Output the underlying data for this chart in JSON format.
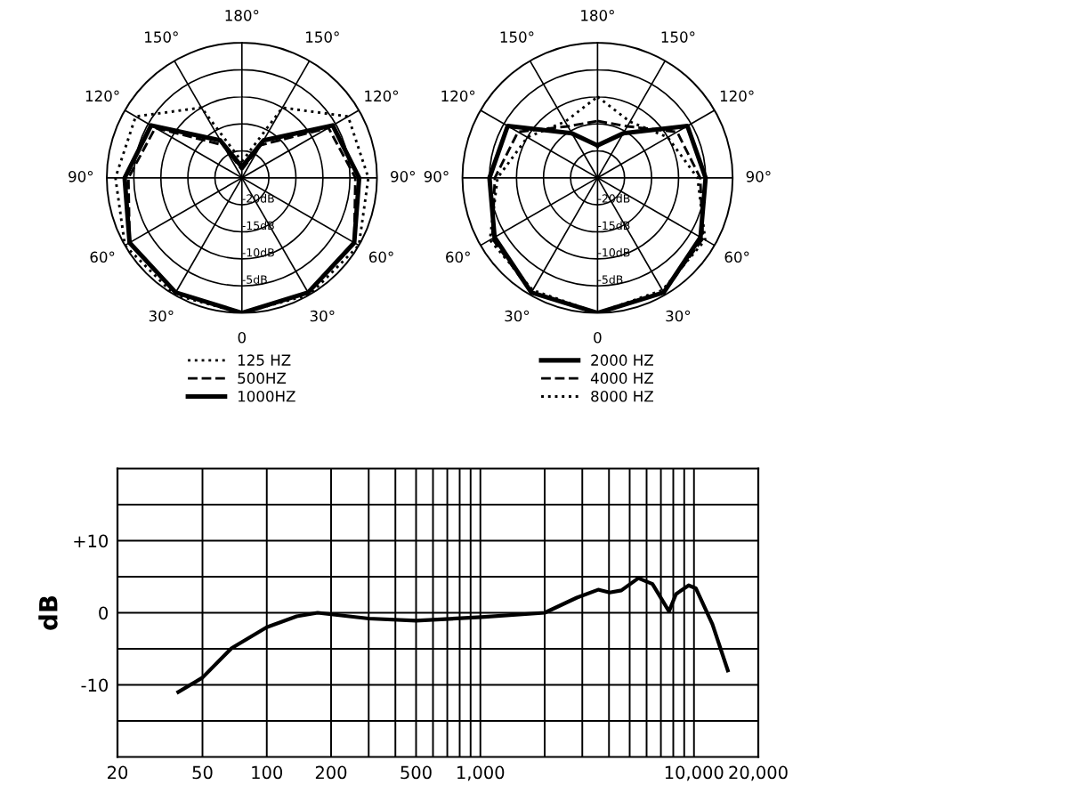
{
  "chart_data": [
    {
      "type": "radar",
      "categories": [
        "180°",
        "150°",
        "120°",
        "90°",
        "60°",
        "30°",
        "0",
        "30°",
        "60°",
        "90°",
        "120°",
        "150°"
      ],
      "ylim": [
        -25,
        0
      ],
      "yticks": [
        {
          "value": -20,
          "label": "-20dB"
        },
        {
          "value": -15,
          "label": "-15dB"
        },
        {
          "value": -10,
          "label": "-10dB"
        },
        {
          "value": -5,
          "label": "-5dB"
        }
      ],
      "grid": true,
      "legend": "bottom",
      "series": [
        {
          "name": "125 HZ",
          "color": "#000000",
          "line_style": "dotted",
          "values": [
            -22,
            -10,
            -2.3,
            -1.6,
            0,
            0,
            0,
            0,
            0,
            -1.6,
            -2.3,
            -10
          ]
        },
        {
          "name": "500HZ",
          "color": "#000000",
          "line_style": "dashed",
          "values": [
            -23.5,
            -18,
            -6.5,
            -4,
            -1,
            -0.5,
            0,
            -0.5,
            -1,
            -4,
            -6.5,
            -18
          ]
        },
        {
          "name": "1000HZ",
          "color": "#000000",
          "line_style": "solid",
          "values": [
            -23,
            -17,
            -5.6,
            -3.3,
            -1,
            -0.5,
            0,
            -0.5,
            -1,
            -3.3,
            -5.6,
            -17
          ]
        }
      ]
    },
    {
      "type": "radar",
      "categories": [
        "180°",
        "150°",
        "120°",
        "90°",
        "60°",
        "30°",
        "0",
        "30°",
        "60°",
        "90°",
        "120°",
        "150°"
      ],
      "ylim": [
        -25,
        0
      ],
      "yticks": [
        {
          "value": -20,
          "label": "-20dB"
        },
        {
          "value": -15,
          "label": "-15dB"
        },
        {
          "value": -10,
          "label": "-10dB"
        },
        {
          "value": -5,
          "label": "-5dB"
        }
      ],
      "grid": true,
      "legend": "bottom",
      "series": [
        {
          "name": "2000 HZ",
          "color": "#000000",
          "line_style": "solid",
          "values": [
            -19,
            -15.5,
            -5.8,
            -5,
            -3,
            -0.5,
            0,
            -0.5,
            -3,
            -5,
            -5.8,
            -15.5
          ]
        },
        {
          "name": "4000 HZ",
          "color": "#000000",
          "line_style": "dashed",
          "values": [
            -14.5,
            -14,
            -8,
            -6,
            -2.5,
            -0.5,
            0,
            -0.5,
            -2.5,
            -6,
            -8,
            -14
          ]
        },
        {
          "name": "8000 HZ",
          "color": "#000000",
          "line_style": "dotted",
          "values": [
            -10,
            -13,
            -10,
            -6.5,
            -2,
            -1,
            0,
            -1,
            -2,
            -6.5,
            -10,
            -13
          ]
        }
      ]
    },
    {
      "type": "line",
      "ylabel": "dB",
      "log": "x",
      "xlim": [
        20,
        20000
      ],
      "ylim": [
        -20,
        20
      ],
      "grid": true,
      "xticks": [
        20,
        50,
        100,
        200,
        {
          "value": 300,
          "label": null
        },
        {
          "value": 400,
          "label": null
        },
        500,
        {
          "value": 600,
          "label": null
        },
        {
          "value": 700,
          "label": null
        },
        {
          "value": 800,
          "label": null
        },
        {
          "value": 900,
          "label": null
        },
        {
          "value": 1000,
          "label": "1,000"
        },
        {
          "value": 2000,
          "label": null
        },
        {
          "value": 3000,
          "label": null
        },
        {
          "value": 4000,
          "label": null
        },
        {
          "value": 5000,
          "label": null
        },
        {
          "value": 6000,
          "label": null
        },
        {
          "value": 7000,
          "label": null
        },
        {
          "value": 8000,
          "label": null
        },
        {
          "value": 9000,
          "label": null
        },
        {
          "value": 10000,
          "label": "10,000"
        },
        {
          "value": 20000,
          "label": "20,000"
        }
      ],
      "yticks": [
        {
          "value": 15,
          "label": null
        },
        {
          "value": 10,
          "label": "+10"
        },
        {
          "value": 5,
          "label": null
        },
        0,
        {
          "value": -5,
          "label": null
        },
        -10,
        {
          "value": -15,
          "label": null
        }
      ],
      "series": [
        {
          "color": "#000000",
          "line_style": "solid",
          "x": [
            38.5,
            50,
            68.5,
            100,
            138,
            173,
            300,
            500,
            1011,
            2000,
            2830,
            3560,
            4030,
            4570,
            5490,
            6390,
            7640,
            8240,
            9440,
            10200,
            12200,
            14400
          ],
          "values": [
            -11,
            -9,
            -4.9,
            -2,
            -0.5,
            0,
            -0.8,
            -1.1,
            -0.6,
            0,
            2.1,
            3.2,
            2.8,
            3.1,
            4.8,
            4,
            0.2,
            2.6,
            3.8,
            3.4,
            -1.6,
            -8
          ]
        }
      ]
    }
  ]
}
